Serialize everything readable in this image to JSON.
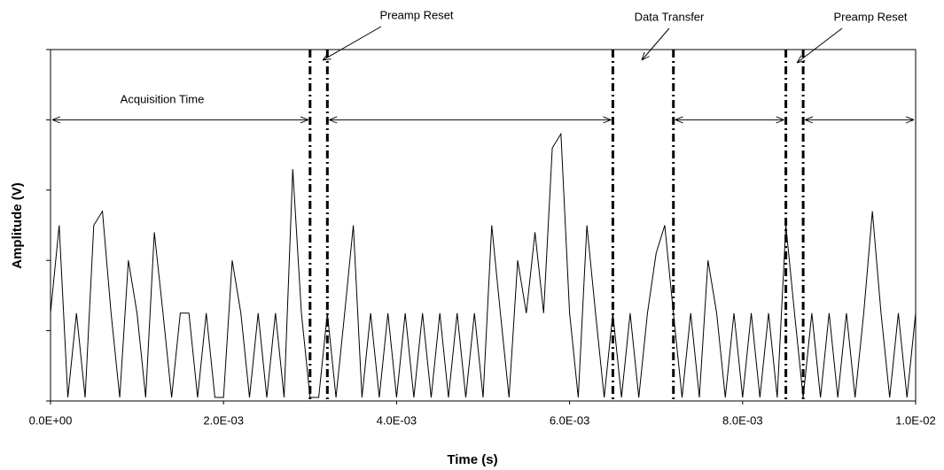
{
  "chart_data": {
    "type": "line",
    "xlabel": "Time (s)",
    "ylabel": "Amplitude (V)",
    "x": [
      0,
      0.0001,
      0.0002,
      0.0003,
      0.0004,
      0.0005,
      0.0006,
      0.0007,
      0.0008,
      0.0009,
      0.001,
      0.0011,
      0.0012,
      0.0013,
      0.0014,
      0.0015,
      0.0016,
      0.0017,
      0.0018,
      0.0019,
      0.002,
      0.0021,
      0.0022,
      0.0023,
      0.0024,
      0.0025,
      0.0026,
      0.0027,
      0.0028,
      0.0029,
      0.003,
      0.0031,
      0.0032,
      0.0033,
      0.0034,
      0.0035,
      0.0036,
      0.0037,
      0.0038,
      0.0039,
      0.004,
      0.0041,
      0.0042,
      0.0043,
      0.0044,
      0.0045,
      0.0046,
      0.0047,
      0.0048,
      0.0049,
      0.005,
      0.0051,
      0.0052,
      0.0053,
      0.0054,
      0.0055,
      0.0056,
      0.0057,
      0.0058,
      0.0059,
      0.006,
      0.0061,
      0.0062,
      0.0063,
      0.0064,
      0.0065,
      0.0066,
      0.0067,
      0.0068,
      0.0069,
      0.007,
      0.0071,
      0.0072,
      0.0073,
      0.0074,
      0.0075,
      0.0076,
      0.0077,
      0.0078,
      0.0079,
      0.008,
      0.0081,
      0.0082,
      0.0083,
      0.0084,
      0.0085,
      0.0086,
      0.0087,
      0.0088,
      0.0089,
      0.009,
      0.0091,
      0.0092,
      0.0093,
      0.0094,
      0.0095,
      0.0096,
      0.0097,
      0.0098,
      0.0099,
      0.01
    ],
    "values": [
      1.25,
      2.5,
      0.05,
      1.25,
      0.05,
      2.5,
      2.7,
      1.25,
      0.05,
      2.0,
      1.25,
      0.05,
      2.4,
      1.25,
      0.05,
      1.25,
      1.25,
      0.05,
      1.25,
      0.05,
      0.05,
      2.0,
      1.25,
      0.05,
      1.25,
      0.05,
      1.25,
      0.05,
      3.3,
      1.25,
      0.05,
      0.05,
      1.25,
      0.05,
      1.25,
      2.5,
      0.05,
      1.25,
      0.05,
      1.25,
      0.05,
      1.25,
      0.05,
      1.25,
      0.05,
      1.25,
      0.05,
      1.25,
      0.05,
      1.25,
      0.05,
      2.5,
      1.25,
      0.05,
      2.0,
      1.25,
      2.4,
      1.25,
      3.6,
      3.8,
      1.25,
      0.05,
      2.5,
      1.25,
      0.05,
      1.25,
      0.05,
      1.25,
      0.05,
      1.25,
      2.1,
      2.5,
      1.25,
      0.05,
      1.25,
      0.05,
      2.0,
      1.25,
      0.05,
      1.25,
      0.05,
      1.25,
      0.05,
      1.25,
      0.05,
      2.5,
      1.25,
      0.05,
      1.25,
      0.05,
      1.25,
      0.05,
      1.25,
      0.05,
      1.25,
      2.7,
      1.25,
      0.05,
      1.25,
      0.05,
      1.25
    ],
    "color": "#000000",
    "xlim": [
      0,
      0.01
    ],
    "xticks": [
      {
        "value": 0,
        "label": "0.0E+00"
      },
      {
        "value": 0.002,
        "label": "2.0E-03"
      },
      {
        "value": 0.004,
        "label": "4.0E-03"
      },
      {
        "value": 0.006,
        "label": "6.0E-03"
      },
      {
        "value": 0.008,
        "label": "8.0E-03"
      },
      {
        "value": 0.01,
        "label": "1.0E-02"
      }
    ],
    "ylim": [
      0,
      5
    ],
    "yticks": [
      0,
      1,
      2,
      3,
      4,
      5
    ],
    "vlines": [
      0.003,
      0.0032,
      0.0065,
      0.0072,
      0.0085,
      0.0087
    ],
    "spans": [
      [
        0,
        0.003
      ],
      [
        0.0032,
        0.0065
      ],
      [
        0.0072,
        0.0085
      ],
      [
        0.0087,
        0.01
      ]
    ],
    "span_y": 4,
    "annotations": [
      "Preamp Reset",
      "Data Transfer",
      "Preamp Reset",
      "Acquisition Time"
    ]
  }
}
